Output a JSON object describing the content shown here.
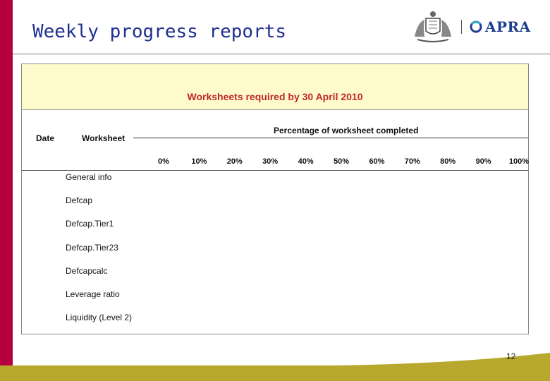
{
  "header": {
    "title": "Weekly progress reports",
    "logo_text": "APRA"
  },
  "worksheet": {
    "title": "Worksheets required by 30 April 2010",
    "date_label": "Date",
    "worksheet_label": "Worksheet",
    "percentage_label": "Percentage of worksheet completed",
    "percentages": [
      "0%",
      "10%",
      "20%",
      "30%",
      "40%",
      "50%",
      "60%",
      "70%",
      "80%",
      "90%",
      "100%"
    ],
    "rows": [
      "General info",
      "Defcap",
      "Defcap.Tier1",
      "Defcap.Tier23",
      "Defcapcalc",
      "Leverage ratio",
      "Liquidity (Level 2)"
    ]
  },
  "footer": {
    "page_number": "12"
  },
  "colors": {
    "accent": "#b5003f",
    "title": "#1f2f8f",
    "sheet_header_bg": "#fdfbcc",
    "sheet_title": "#c0282a",
    "footer_band": "#b8a92e"
  }
}
